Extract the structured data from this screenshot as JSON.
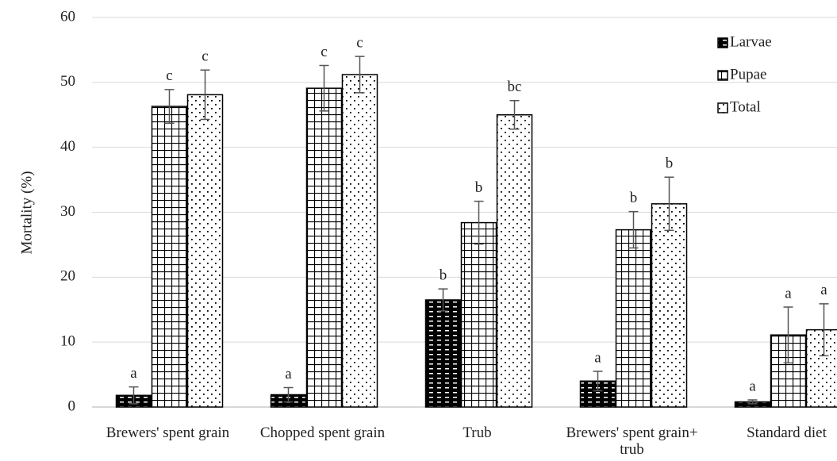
{
  "chart_data": {
    "type": "bar",
    "y_label": "Mortality (%)",
    "categories": [
      "Brewers' spent grain",
      "Chopped spent grain",
      "Trub",
      "Brewers' spent grain+ trub",
      "Standard diet"
    ],
    "series": [
      {
        "name": "Larvae",
        "color": "#000000",
        "pattern": "brick",
        "values": [
          1.8,
          1.9,
          16.5,
          4.0,
          0.8
        ],
        "errors": [
          1.3,
          1.1,
          1.7,
          1.5,
          0.3
        ],
        "letters": [
          "a",
          "a",
          "b",
          "a",
          "a"
        ]
      },
      {
        "name": "Pupae",
        "color": "#000000",
        "pattern": "grid",
        "values": [
          46.3,
          49.1,
          28.4,
          27.3,
          11.1
        ],
        "errors": [
          2.6,
          3.5,
          3.3,
          2.8,
          4.3
        ],
        "letters": [
          "c",
          "c",
          "b",
          "b",
          "a"
        ]
      },
      {
        "name": "Total",
        "color": "#000000",
        "pattern": "dots",
        "values": [
          48.1,
          51.2,
          45.0,
          31.3,
          11.9
        ],
        "errors": [
          3.8,
          2.8,
          2.2,
          4.1,
          4.0
        ],
        "letters": [
          "c",
          "c",
          "bc",
          "b",
          "a"
        ]
      }
    ],
    "ylim": [
      0,
      60
    ],
    "yticks": [
      0,
      10,
      20,
      30,
      40,
      50,
      60
    ],
    "grid": true,
    "legend": "upper right"
  }
}
